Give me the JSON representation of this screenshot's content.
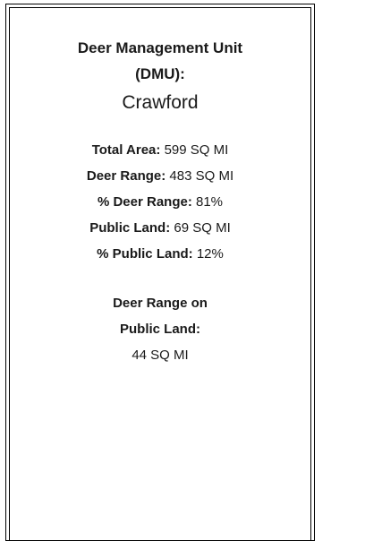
{
  "header": {
    "title_line1": "Deer Management Unit",
    "title_line2": "(DMU):",
    "dmu_name": "Crawford"
  },
  "stats": [
    {
      "label": "Total Area",
      "value": "599 SQ MI"
    },
    {
      "label": "Deer Range",
      "value": "483 SQ MI"
    },
    {
      "label": "% Deer Range",
      "value": "81%"
    },
    {
      "label": "Public Land",
      "value": "69 SQ MI"
    },
    {
      "label": "% Public Land",
      "value": "12%"
    }
  ],
  "public_range": {
    "label_line1": "Deer Range on",
    "label_line2": "Public Land:",
    "value": "44 SQ MI"
  }
}
